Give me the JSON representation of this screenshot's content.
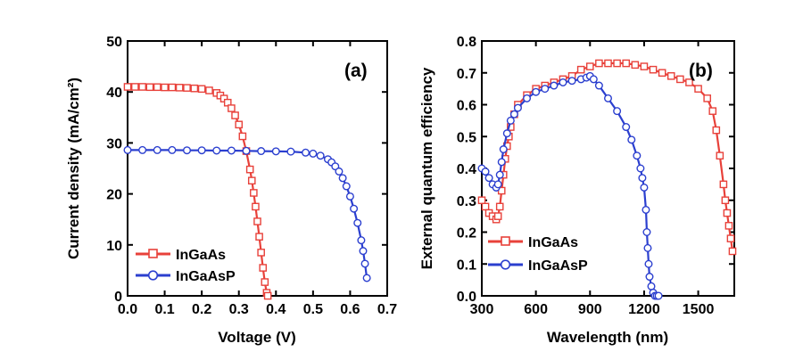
{
  "chart_data": [
    {
      "type": "line",
      "panel_label": "(a)",
      "xlabel": "Voltage (V)",
      "ylabel": "Current density (mA/cm²)",
      "xlim": [
        0,
        0.7
      ],
      "ylim": [
        0,
        50
      ],
      "xticks": [
        "0.0",
        "0.1",
        "0.2",
        "0.3",
        "0.4",
        "0.5",
        "0.6",
        "0.7"
      ],
      "yticks": [
        "0",
        "10",
        "20",
        "30",
        "40",
        "50"
      ],
      "grid": false,
      "legend_position": "bottom-left",
      "series": [
        {
          "name": "InGaAs",
          "color": "#e8413a",
          "marker": "square",
          "x": [
            0.0,
            0.02,
            0.04,
            0.06,
            0.08,
            0.1,
            0.12,
            0.14,
            0.16,
            0.18,
            0.2,
            0.22,
            0.24,
            0.25,
            0.26,
            0.27,
            0.28,
            0.29,
            0.3,
            0.31,
            0.32,
            0.33,
            0.335,
            0.34,
            0.345,
            0.35,
            0.355,
            0.36,
            0.365,
            0.37,
            0.375,
            0.378
          ],
          "y": [
            41.0,
            41.0,
            41.0,
            40.95,
            40.95,
            40.9,
            40.9,
            40.85,
            40.8,
            40.7,
            40.6,
            40.3,
            39.8,
            39.3,
            38.7,
            37.9,
            36.8,
            35.4,
            33.6,
            31.3,
            28.4,
            24.8,
            22.6,
            20.2,
            17.5,
            14.6,
            11.6,
            8.5,
            5.5,
            2.7,
            0.6,
            0.0
          ]
        },
        {
          "name": "InGaAsP",
          "color": "#2b3fcf",
          "marker": "circle",
          "x": [
            0.0,
            0.04,
            0.08,
            0.12,
            0.16,
            0.2,
            0.24,
            0.28,
            0.32,
            0.36,
            0.4,
            0.44,
            0.48,
            0.5,
            0.52,
            0.54,
            0.55,
            0.56,
            0.57,
            0.58,
            0.59,
            0.6,
            0.61,
            0.62,
            0.63,
            0.635,
            0.64,
            0.645
          ],
          "y": [
            28.6,
            28.6,
            28.6,
            28.6,
            28.55,
            28.55,
            28.5,
            28.5,
            28.45,
            28.4,
            28.35,
            28.3,
            28.1,
            27.9,
            27.5,
            26.8,
            26.2,
            25.4,
            24.4,
            23.1,
            21.5,
            19.5,
            17.1,
            14.3,
            10.9,
            8.8,
            6.3,
            3.5
          ]
        }
      ]
    },
    {
      "type": "scatter",
      "panel_label": "(b)",
      "xlabel": "Wavelength (nm)",
      "ylabel": "External quantum efficiency",
      "xlim": [
        300,
        1700
      ],
      "ylim": [
        0,
        0.8
      ],
      "xticks": [
        "300",
        "600",
        "900",
        "1200",
        "1500"
      ],
      "yticks": [
        "0.0",
        "0.1",
        "0.2",
        "0.3",
        "0.4",
        "0.5",
        "0.6",
        "0.7",
        "0.8"
      ],
      "grid": false,
      "legend_position": "bottom-left",
      "series": [
        {
          "name": "InGaAs",
          "color": "#e8413a",
          "marker": "square",
          "x": [
            300,
            320,
            340,
            360,
            380,
            390,
            400,
            410,
            420,
            430,
            440,
            450,
            460,
            480,
            500,
            550,
            600,
            650,
            700,
            750,
            800,
            850,
            900,
            950,
            1000,
            1050,
            1100,
            1150,
            1200,
            1250,
            1300,
            1350,
            1400,
            1450,
            1500,
            1550,
            1580,
            1600,
            1620,
            1640,
            1650,
            1660,
            1670,
            1680,
            1690
          ],
          "y": [
            0.3,
            0.28,
            0.26,
            0.25,
            0.24,
            0.25,
            0.28,
            0.33,
            0.38,
            0.43,
            0.47,
            0.5,
            0.53,
            0.57,
            0.6,
            0.63,
            0.65,
            0.66,
            0.67,
            0.68,
            0.69,
            0.71,
            0.72,
            0.73,
            0.73,
            0.73,
            0.73,
            0.725,
            0.72,
            0.71,
            0.7,
            0.69,
            0.68,
            0.67,
            0.65,
            0.62,
            0.58,
            0.52,
            0.44,
            0.35,
            0.3,
            0.26,
            0.22,
            0.18,
            0.14
          ]
        },
        {
          "name": "InGaAsP",
          "color": "#2b3fcf",
          "marker": "circle",
          "x": [
            300,
            320,
            340,
            360,
            380,
            390,
            400,
            410,
            420,
            440,
            460,
            480,
            500,
            550,
            600,
            650,
            700,
            750,
            800,
            850,
            880,
            900,
            920,
            950,
            1000,
            1050,
            1100,
            1130,
            1160,
            1180,
            1190,
            1200,
            1210,
            1215,
            1220,
            1225,
            1230,
            1240,
            1250,
            1260,
            1270,
            1280
          ],
          "y": [
            0.4,
            0.39,
            0.37,
            0.35,
            0.34,
            0.35,
            0.38,
            0.42,
            0.46,
            0.51,
            0.55,
            0.57,
            0.59,
            0.62,
            0.64,
            0.65,
            0.66,
            0.67,
            0.675,
            0.68,
            0.685,
            0.69,
            0.68,
            0.66,
            0.62,
            0.58,
            0.53,
            0.49,
            0.44,
            0.4,
            0.37,
            0.34,
            0.27,
            0.2,
            0.15,
            0.1,
            0.06,
            0.03,
            0.01,
            0.0,
            0.0,
            0.0
          ]
        }
      ]
    }
  ]
}
